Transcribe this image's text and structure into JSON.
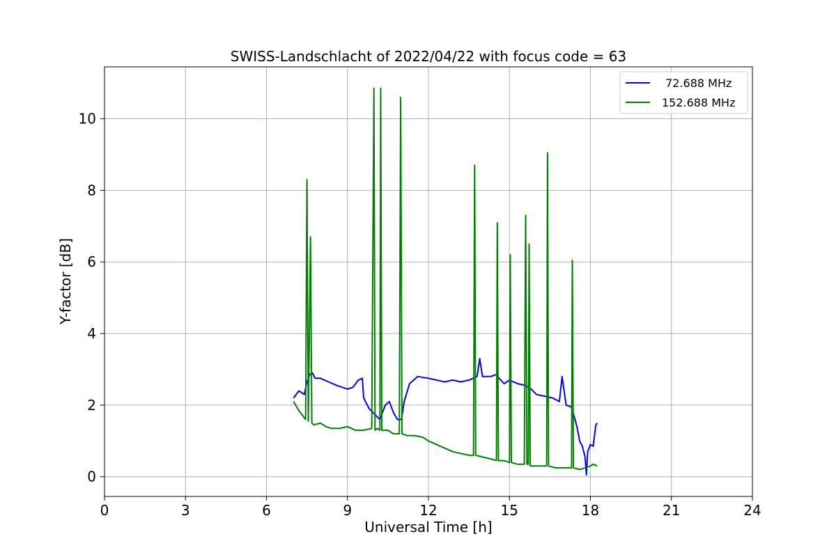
{
  "chart_data": {
    "type": "line",
    "title": "SWISS-Landschlacht of 2022/04/22 with focus code = 63",
    "xlabel": "Universal Time [h]",
    "ylabel": "Y-factor [dB]",
    "xlim": [
      0,
      24
    ],
    "ylim": [
      -0.55,
      11.45
    ],
    "xticks": [
      0,
      3,
      6,
      9,
      12,
      15,
      18,
      21,
      24
    ],
    "xtick_labels": [
      "0",
      "3",
      "6",
      "9",
      "12",
      "15",
      "18",
      "21",
      "24"
    ],
    "yticks": [
      0,
      2,
      4,
      6,
      8,
      10
    ],
    "ytick_labels": [
      "0",
      "2",
      "4",
      "6",
      "8",
      "10"
    ],
    "grid": true,
    "legend_position": "top-right",
    "series": [
      {
        "name": " 72.688 MHz",
        "color": "#0000ff",
        "x": [
          7.0,
          7.2,
          7.4,
          7.5,
          7.6,
          7.7,
          7.8,
          8.0,
          8.3,
          8.6,
          9.0,
          9.2,
          9.4,
          9.55,
          9.6,
          9.8,
          10.0,
          10.2,
          10.4,
          10.55,
          10.7,
          10.85,
          11.0,
          11.1,
          11.3,
          11.6,
          12.0,
          12.3,
          12.6,
          12.9,
          13.2,
          13.5,
          13.8,
          13.9,
          14.0,
          14.3,
          14.5,
          14.8,
          15.0,
          15.3,
          15.6,
          15.8,
          16.0,
          16.3,
          16.6,
          16.85,
          16.95,
          17.1,
          17.3,
          17.5,
          17.6,
          17.7,
          17.8,
          17.85,
          17.9,
          18.0,
          18.1,
          18.2,
          18.25
        ],
        "y": [
          2.2,
          2.4,
          2.3,
          2.65,
          2.85,
          2.9,
          2.75,
          2.75,
          2.65,
          2.55,
          2.45,
          2.5,
          2.7,
          2.75,
          2.2,
          1.9,
          1.75,
          1.6,
          2.0,
          2.1,
          1.8,
          1.6,
          1.6,
          2.1,
          2.6,
          2.8,
          2.75,
          2.7,
          2.65,
          2.7,
          2.65,
          2.7,
          2.8,
          3.3,
          2.8,
          2.8,
          2.85,
          2.6,
          2.7,
          2.6,
          2.55,
          2.45,
          2.3,
          2.25,
          2.2,
          2.1,
          2.8,
          2.0,
          1.95,
          1.4,
          1.0,
          0.85,
          0.55,
          0.05,
          0.7,
          0.9,
          0.85,
          1.45,
          1.5
        ]
      },
      {
        "name": "152.688 MHz",
        "color": "#008000",
        "x": [
          7.0,
          7.2,
          7.45,
          7.5,
          7.55,
          7.63,
          7.68,
          7.75,
          8.0,
          8.2,
          8.4,
          8.7,
          9.0,
          9.3,
          9.6,
          9.9,
          9.98,
          10.02,
          10.1,
          10.2,
          10.23,
          10.27,
          10.5,
          10.7,
          10.92,
          10.97,
          11.02,
          11.2,
          11.5,
          11.8,
          12.0,
          12.3,
          12.6,
          12.9,
          13.2,
          13.5,
          13.67,
          13.71,
          13.75,
          14.0,
          14.3,
          14.52,
          14.55,
          14.59,
          14.8,
          15.0,
          15.03,
          15.07,
          15.3,
          15.55,
          15.6,
          15.65,
          15.7,
          15.73,
          15.77,
          16.0,
          16.3,
          16.38,
          16.41,
          16.45,
          16.7,
          17.0,
          17.3,
          17.33,
          17.37,
          17.6,
          17.8,
          18.0,
          18.1,
          18.25
        ],
        "y": [
          2.1,
          1.85,
          1.6,
          8.3,
          1.55,
          6.7,
          1.5,
          1.45,
          1.5,
          1.4,
          1.35,
          1.35,
          1.4,
          1.3,
          1.3,
          1.35,
          10.85,
          1.3,
          1.35,
          1.3,
          10.85,
          1.3,
          1.3,
          1.2,
          1.2,
          10.6,
          1.2,
          1.15,
          1.15,
          1.1,
          1.0,
          0.9,
          0.8,
          0.7,
          0.65,
          0.6,
          0.6,
          8.7,
          0.6,
          0.55,
          0.5,
          0.45,
          7.1,
          0.45,
          0.45,
          0.4,
          6.2,
          0.4,
          0.35,
          0.35,
          7.3,
          0.35,
          0.35,
          6.5,
          0.3,
          0.3,
          0.3,
          0.3,
          9.05,
          0.3,
          0.25,
          0.25,
          0.25,
          6.05,
          0.25,
          0.2,
          0.25,
          0.3,
          0.35,
          0.3
        ]
      }
    ]
  }
}
